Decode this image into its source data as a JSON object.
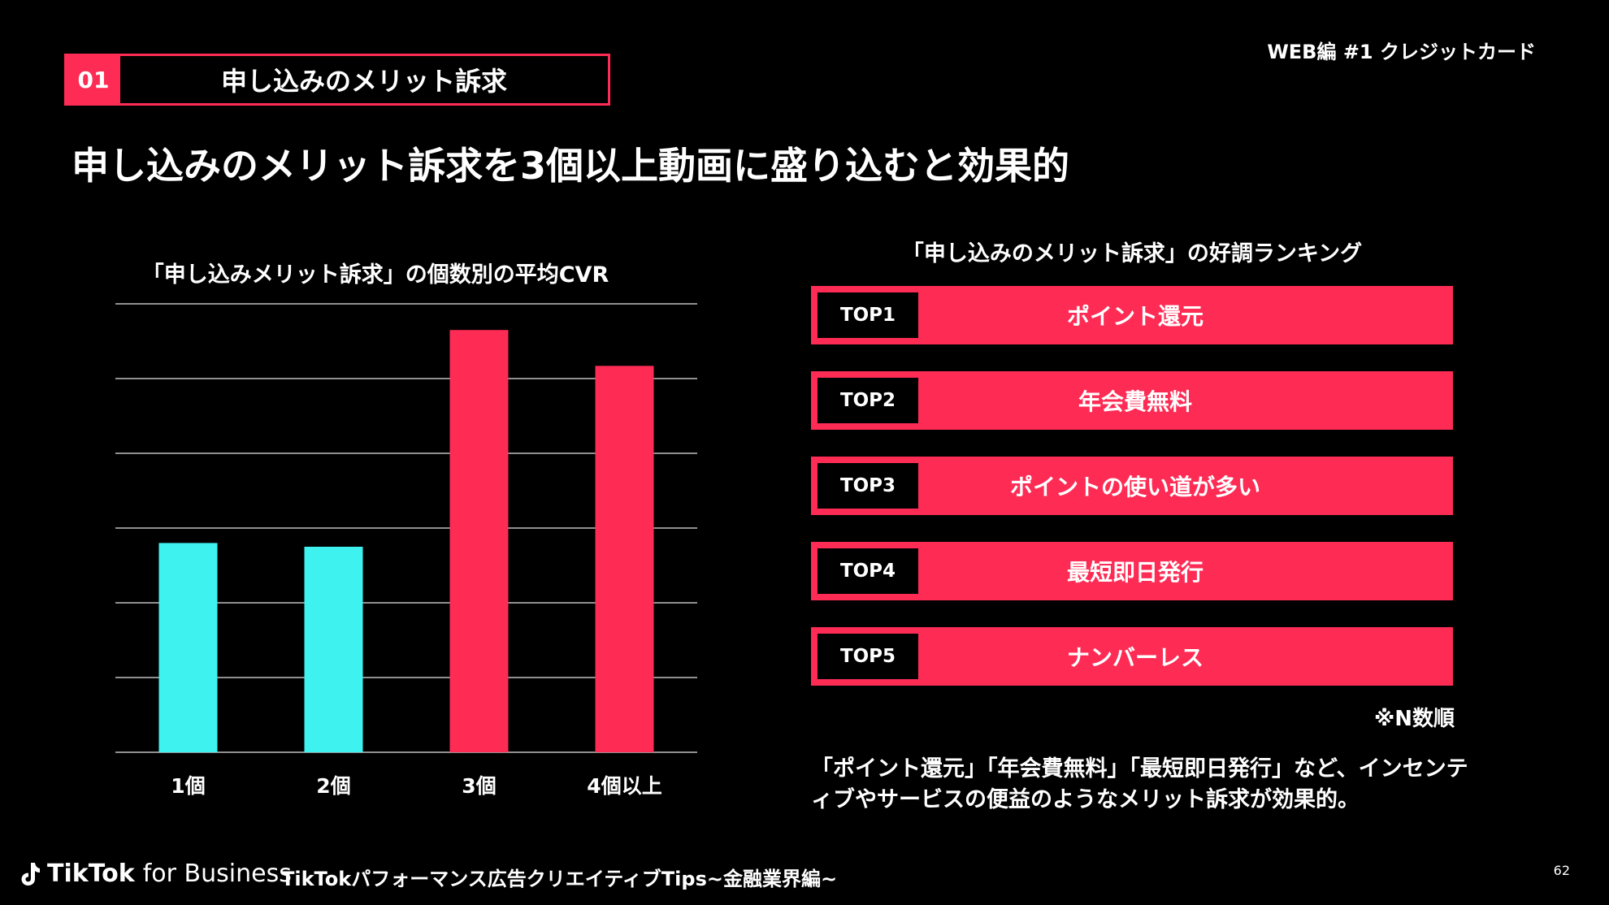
{
  "header": {
    "section_number": "01",
    "section_title": "申し込みのメリット訴求",
    "tag": "WEB編 #1 クレジットカード"
  },
  "headline": "申し込みのメリット訴求を3個以上動画に盛り込むと効果的",
  "colors": {
    "accent": "#fe2c55",
    "cyan": "#3ef2ef",
    "background": "#000000"
  },
  "chart_data": {
    "type": "bar",
    "title": "「申し込みメリット訴求」の個数別の平均CVR",
    "categories": [
      "1個",
      "2個",
      "3個",
      "4個以上"
    ],
    "values": [
      2.8,
      2.75,
      5.65,
      5.17
    ],
    "colors": [
      "#3ef2ef",
      "#3ef2ef",
      "#fe2c55",
      "#fe2c55"
    ],
    "ylim": [
      0,
      6
    ],
    "grid": true,
    "xlabel": "",
    "ylabel": ""
  },
  "ranking": {
    "title": "「申し込みのメリット訴求」の好調ランキング",
    "items": [
      {
        "rank": "TOP1",
        "label": "ポイント還元"
      },
      {
        "rank": "TOP2",
        "label": "年会費無料"
      },
      {
        "rank": "TOP3",
        "label": "ポイントの使い道が多い"
      },
      {
        "rank": "TOP4",
        "label": "最短即日発行"
      },
      {
        "rank": "TOP5",
        "label": "ナンバーレス"
      }
    ],
    "note": "※N数順"
  },
  "summary": "「ポイント還元」「年会費無料」「最短即日発行」など、インセンティブやサービスの便益のようなメリット訴求が効果的。",
  "footer": {
    "logo_main": "TikTok",
    "logo_sub": "for Business",
    "title": "TikTokパフォーマンス広告クリエイティブTips~金融業界編~",
    "page": "62"
  }
}
